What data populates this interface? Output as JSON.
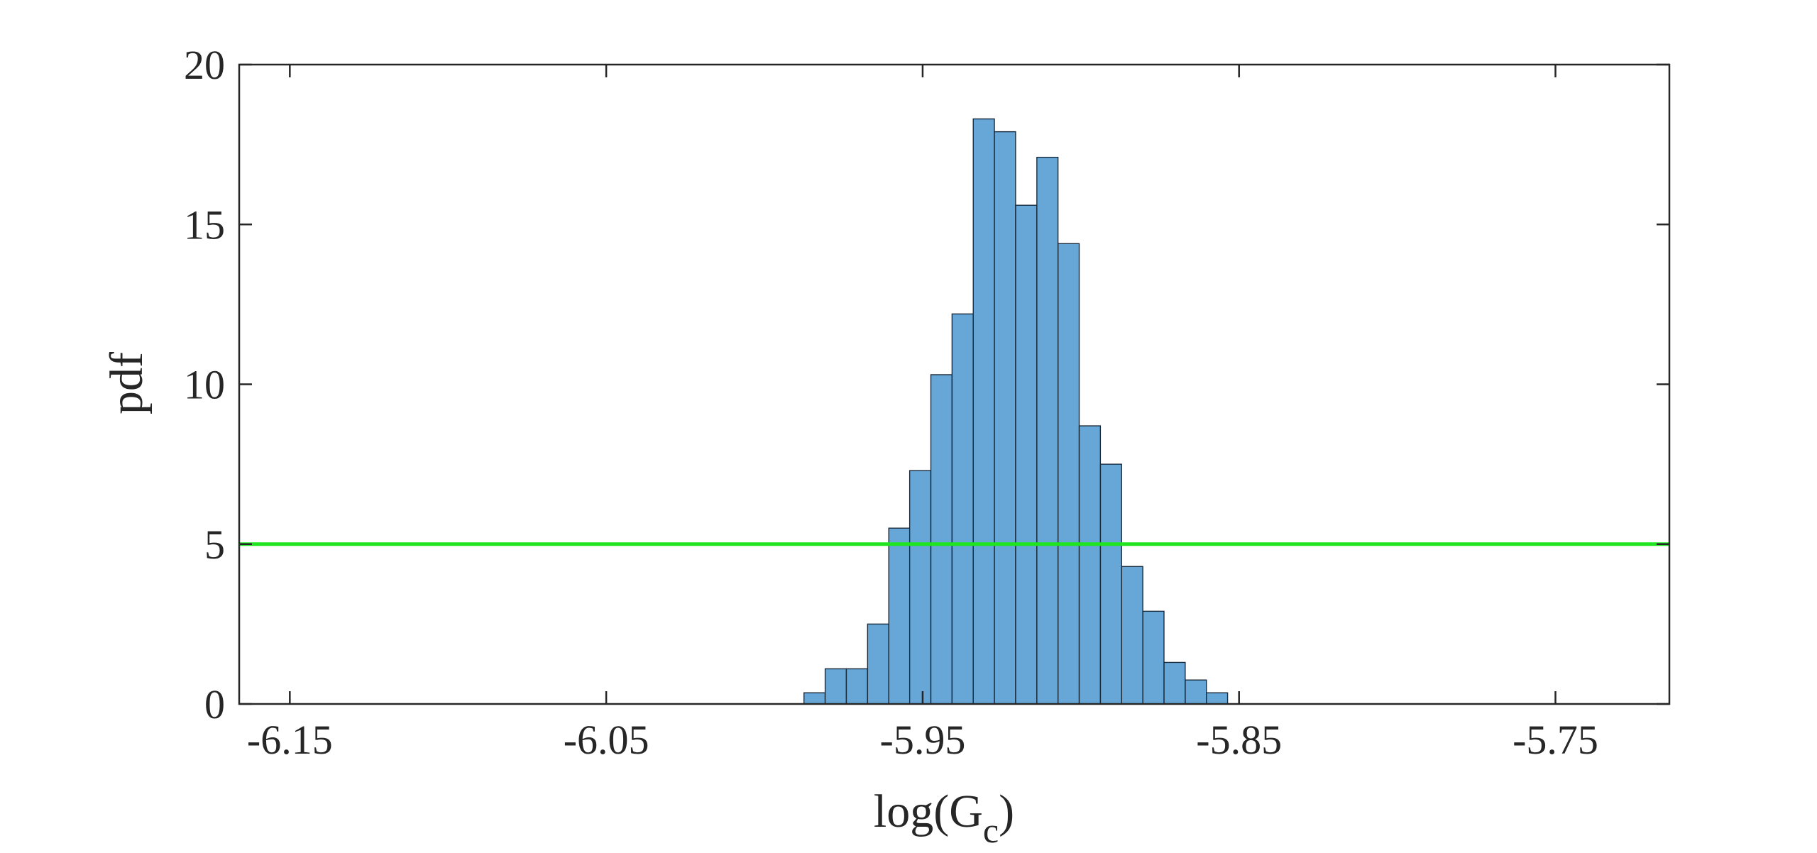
{
  "chart_data": {
    "type": "histogram",
    "xlabel": {
      "base": "log(G",
      "subscript": "c",
      "suffix": ")"
    },
    "ylabel": "pdf",
    "xlim": [
      -6.166,
      -5.714
    ],
    "ylim": [
      0,
      20
    ],
    "xticks": [
      -6.15,
      -6.05,
      -5.95,
      -5.85,
      -5.75
    ],
    "xtick_labels": [
      "-6.15",
      "-6.05",
      "-5.95",
      "-5.85",
      "-5.75"
    ],
    "yticks": [
      0,
      5,
      10,
      15,
      20
    ],
    "ytick_labels": [
      "0",
      "5",
      "10",
      "15",
      "20"
    ],
    "bin_width": 0.00668,
    "bins": [
      {
        "x0": -5.9875,
        "value": 0.35
      },
      {
        "x0": -5.9808,
        "value": 1.1
      },
      {
        "x0": -5.9741,
        "value": 1.1
      },
      {
        "x0": -5.9674,
        "value": 2.5
      },
      {
        "x0": -5.9607,
        "value": 5.5
      },
      {
        "x0": -5.9541,
        "value": 7.3
      },
      {
        "x0": -5.9474,
        "value": 10.3
      },
      {
        "x0": -5.9407,
        "value": 12.2
      },
      {
        "x0": -5.934,
        "value": 18.3
      },
      {
        "x0": -5.9273,
        "value": 17.9
      },
      {
        "x0": -5.9206,
        "value": 15.6
      },
      {
        "x0": -5.9139,
        "value": 17.1
      },
      {
        "x0": -5.9072,
        "value": 14.4
      },
      {
        "x0": -5.9005,
        "value": 8.7
      },
      {
        "x0": -5.8938,
        "value": 7.5
      },
      {
        "x0": -5.8871,
        "value": 4.3
      },
      {
        "x0": -5.8804,
        "value": 2.9
      },
      {
        "x0": -5.8737,
        "value": 1.3
      },
      {
        "x0": -5.867,
        "value": 0.75
      },
      {
        "x0": -5.8603,
        "value": 0.35
      }
    ],
    "reference_line": {
      "y": 5,
      "color": "#1ee51e"
    },
    "bar_color": "#66a7d8",
    "grid": false,
    "box": true
  }
}
